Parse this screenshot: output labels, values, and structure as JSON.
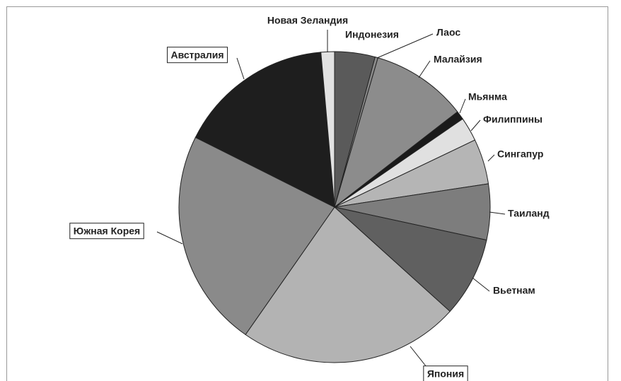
{
  "chart_data": {
    "type": "pie",
    "categories": [
      "Индонезия",
      "Лаос",
      "Малайзия",
      "Мьянма",
      "Филиппины",
      "Сингапур",
      "Таиланд",
      "Вьетнам",
      "Япония",
      "Южная Корея",
      "Австралия",
      "Новая Зеландия"
    ],
    "values": [
      4.2,
      0.3,
      10,
      0.9,
      2.5,
      4.7,
      5.8,
      8.3,
      23,
      22.7,
      16.2,
      1.4
    ],
    "colors": [
      "#5a5a5a",
      "#8a8a8a",
      "#8c8c8c",
      "#1a1a1a",
      "#e0e0e0",
      "#b5b5b5",
      "#7d7d7d",
      "#606060",
      "#b3b3b3",
      "#8a8a8a",
      "#1e1e1e",
      "#e2e2e2"
    ]
  }
}
